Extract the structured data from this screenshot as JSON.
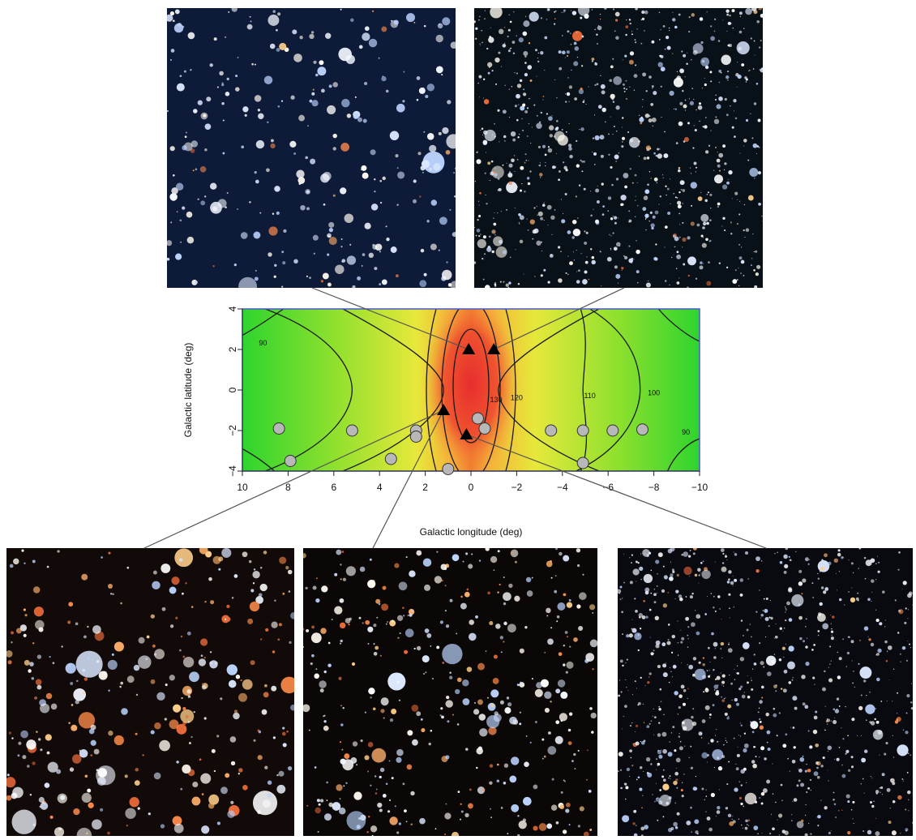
{
  "chart_data": {
    "type": "scatter",
    "title": "",
    "xlabel": "Galactic longitude (deg)",
    "ylabel": "Galactic latitude (deg)",
    "xlim": [
      10,
      -10
    ],
    "ylim": [
      -4,
      4
    ],
    "x_ticks": [
      10,
      8,
      6,
      4,
      2,
      0,
      -2,
      -4,
      -6,
      -8,
      -10
    ],
    "x_tick_labels": [
      "10",
      "8",
      "6",
      "4",
      "2",
      "0",
      "−2",
      "−4",
      "−6",
      "−8",
      "−10"
    ],
    "y_ticks": [
      4,
      2,
      0,
      -2,
      -4
    ],
    "y_tick_labels": [
      "4",
      "2",
      "0",
      "−2",
      "−4"
    ],
    "background": "heatmap",
    "colormap": [
      "#2ed42e",
      "#9ae02e",
      "#e8e83a",
      "#f5b23a",
      "#f06a2e",
      "#e82e2e"
    ],
    "contour_labels": [
      {
        "text": "90",
        "x": 9.1,
        "y": 2.2
      },
      {
        "text": "130",
        "x": -1.1,
        "y": -0.6
      },
      {
        "text": "120",
        "x": -2.0,
        "y": -0.5
      },
      {
        "text": "110",
        "x": -5.2,
        "y": -0.4
      },
      {
        "text": "100",
        "x": -8.0,
        "y": -0.25
      },
      {
        "text": "90",
        "x": -9.4,
        "y": -2.2
      }
    ],
    "series": [
      {
        "marker": "triangle",
        "points": [
          [
            0.1,
            2.0
          ],
          [
            -1.0,
            2.0
          ],
          [
            1.2,
            -1.0
          ],
          [
            0.2,
            -2.2
          ]
        ]
      },
      {
        "marker": "circle",
        "points": [
          [
            8.4,
            -1.9
          ],
          [
            7.9,
            -3.5
          ],
          [
            5.2,
            -2.0
          ],
          [
            3.5,
            -3.4
          ],
          [
            2.4,
            -2.0
          ],
          [
            2.4,
            -2.3
          ],
          [
            1.0,
            -3.9
          ],
          [
            -0.3,
            -1.4
          ],
          [
            -0.6,
            -1.9
          ],
          [
            -3.5,
            -2.0
          ],
          [
            -4.9,
            -2.0
          ],
          [
            -4.9,
            -3.6
          ],
          [
            -6.2,
            -2.0
          ],
          [
            -7.5,
            -1.95
          ]
        ]
      }
    ],
    "callouts": [
      {
        "from_point": 0,
        "to_panel": "top-left"
      },
      {
        "from_point": 1,
        "to_panel": "top-right"
      },
      {
        "from_point": 2,
        "to_panel": "bottom-left"
      },
      {
        "from_point": 2,
        "to_panel": "bottom-middle"
      },
      {
        "from_point": 3,
        "to_panel": "bottom-right"
      }
    ]
  },
  "colors": {
    "triangle_fill": "#000000",
    "circle_fill": "#b8b8b8",
    "circle_stroke": "#333333",
    "contour": "#1a1a1a",
    "frame": "#4a5ac8",
    "callout_line": "#555555"
  },
  "star_panels": [
    {
      "name": "top-left",
      "sky": "#0d1a38",
      "seed": 11,
      "density": 300,
      "size_scale": 1.6,
      "warm_fraction": 0.06
    },
    {
      "name": "top-right",
      "sky": "#081018",
      "seed": 23,
      "density": 900,
      "size_scale": 0.9,
      "warm_fraction": 0.05
    },
    {
      "name": "bottom-left",
      "sky": "#120a08",
      "seed": 37,
      "density": 320,
      "size_scale": 1.9,
      "warm_fraction": 0.35
    },
    {
      "name": "bottom-middle",
      "sky": "#0a0706",
      "seed": 41,
      "density": 420,
      "size_scale": 1.5,
      "warm_fraction": 0.25
    },
    {
      "name": "bottom-right",
      "sky": "#080a10",
      "seed": 53,
      "density": 950,
      "size_scale": 0.85,
      "warm_fraction": 0.08
    }
  ]
}
